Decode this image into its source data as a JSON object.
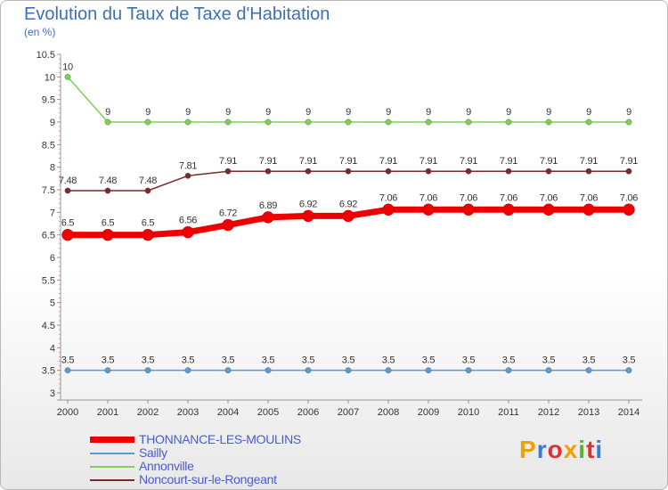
{
  "title": "Evolution du Taux de Taxe d'Habitation",
  "unit": "(en %)",
  "logo": {
    "text": "Proxiti",
    "colors": [
      "#f0a000",
      "#3c78d8",
      "#e03030",
      "#f0a000",
      "#5ab030",
      "#e03030",
      "#3c78d8"
    ]
  },
  "chart_data": {
    "type": "line",
    "x": [
      "2000",
      "2001",
      "2002",
      "2003",
      "2004",
      "2005",
      "2006",
      "2007",
      "2008",
      "2009",
      "2010",
      "2011",
      "2012",
      "2013",
      "2014"
    ],
    "ylim": [
      3,
      10.5
    ],
    "yticks": [
      "3",
      "3.5",
      "4",
      "4.5",
      "5",
      "5.5",
      "6",
      "6.5",
      "7",
      "7.5",
      "8",
      "8.5",
      "9",
      "9.5",
      "10",
      "10.5"
    ],
    "grid": false,
    "legend_position": "bottom-left",
    "series": [
      {
        "name": "Sailly",
        "color": "#5a9bd5",
        "values": [
          3.5,
          3.5,
          3.5,
          3.5,
          3.5,
          3.5,
          3.5,
          3.5,
          3.5,
          3.5,
          3.5,
          3.5,
          3.5,
          3.5,
          3.5
        ],
        "labels": [
          "3.5",
          "3.5",
          "3.5",
          "3.5",
          "3.5",
          "3.5",
          "3.5",
          "3.5",
          "3.5",
          "3.5",
          "3.5",
          "3.5",
          "3.5",
          "3.5",
          "3.5"
        ]
      },
      {
        "name": "Annonville",
        "color": "#80d050",
        "values": [
          10,
          9,
          9,
          9,
          9,
          9,
          9,
          9,
          9,
          9,
          9,
          9,
          9,
          9,
          9
        ],
        "labels": [
          "10",
          "9",
          "9",
          "9",
          "9",
          "9",
          "9",
          "9",
          "9",
          "9",
          "9",
          "9",
          "9",
          "9",
          "9"
        ]
      },
      {
        "name": "Noncourt-sur-le-Rongeant",
        "color": "#7a2a2a",
        "values": [
          7.48,
          7.48,
          7.48,
          7.81,
          7.91,
          7.91,
          7.91,
          7.91,
          7.91,
          7.91,
          7.91,
          7.91,
          7.91,
          7.91,
          7.91
        ],
        "labels": [
          "7.48",
          "7.48",
          "7.48",
          "7.81",
          "7.91",
          "7.91",
          "7.91",
          "7.91",
          "7.91",
          "7.91",
          "7.91",
          "7.91",
          "7.91",
          "7.91",
          "7.91"
        ]
      },
      {
        "name": "THONNANCE-LES-MOULINS",
        "color": "#ee0000",
        "values": [
          6.5,
          6.5,
          6.5,
          6.56,
          6.72,
          6.89,
          6.92,
          6.92,
          7.06,
          7.06,
          7.06,
          7.06,
          7.06,
          7.06,
          7.06
        ],
        "labels": [
          "6.5",
          "6.5",
          "6.5",
          "6.56",
          "6.72",
          "6.89",
          "6.92",
          "6.92",
          "7.06",
          "7.06",
          "7.06",
          "7.06",
          "7.06",
          "7.06",
          "7.06"
        ]
      }
    ]
  },
  "legend": [
    {
      "name": "THONNANCE-LES-MOULINS",
      "color": "#ee0000",
      "thick": true
    },
    {
      "name": "Sailly",
      "color": "#5a9bd5",
      "thick": false
    },
    {
      "name": "Annonville",
      "color": "#80d050",
      "thick": false
    },
    {
      "name": "Noncourt-sur-le-Rongeant",
      "color": "#7a2a2a",
      "thick": false
    }
  ]
}
